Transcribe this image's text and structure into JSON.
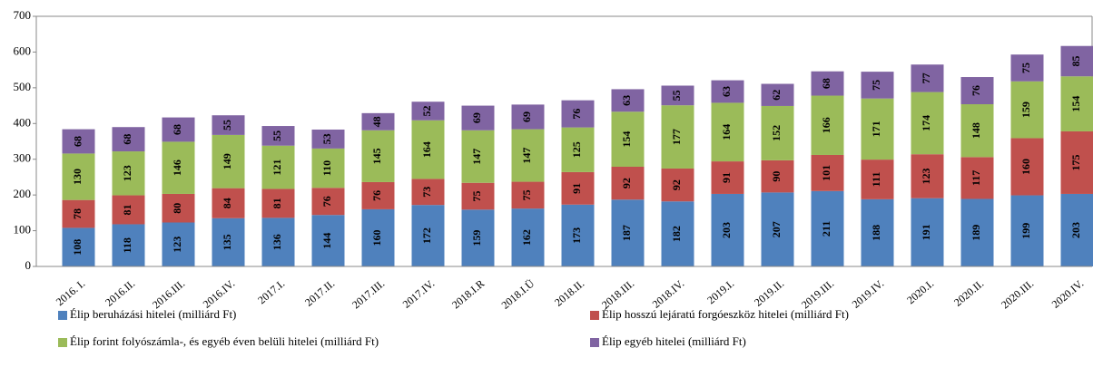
{
  "chart_data": {
    "type": "stacked_bar",
    "categories": [
      "2016. I.",
      "2016.II.",
      "2016.III.",
      "2016.IV.",
      "2017.I.",
      "2017.II.",
      "2017.III.",
      "2017.IV.",
      "2018.I.R",
      "2018.I.Ü",
      "2018.II.",
      "2018.III.",
      "2018.IV.",
      "2019.I.",
      "2019.II.",
      "2019.III.",
      "2019.IV.",
      "2020.I.",
      "2020.II.",
      "2020.III.",
      "2020.IV."
    ],
    "series": [
      {
        "name": "Élip beruházási hitelei (milliárd Ft)",
        "color": "#4f81bd",
        "values": [
          108,
          118,
          123,
          135,
          136,
          144,
          160,
          172,
          159,
          162,
          173,
          187,
          182,
          203,
          207,
          211,
          188,
          191,
          189,
          199,
          203
        ]
      },
      {
        "name": "Élip hosszú lejáratú forgóeszköz hitelei (milliárd Ft)",
        "color": "#c0504d",
        "values": [
          78,
          81,
          80,
          84,
          81,
          76,
          76,
          73,
          75,
          75,
          91,
          92,
          92,
          91,
          90,
          101,
          111,
          123,
          117,
          160,
          175
        ]
      },
      {
        "name": "Élip forint folyószámla-, és egyéb éven belüli hitelei (milliárd Ft)",
        "color": "#9bbb59",
        "values": [
          130,
          123,
          146,
          149,
          121,
          110,
          145,
          164,
          147,
          147,
          125,
          154,
          177,
          164,
          152,
          166,
          171,
          174,
          148,
          159,
          154
        ]
      },
      {
        "name": "Élip egyéb hitelei (milliárd Ft)",
        "color": "#8064a2",
        "values": [
          68,
          68,
          68,
          55,
          55,
          53,
          48,
          52,
          69,
          69,
          76,
          63,
          55,
          63,
          62,
          68,
          75,
          77,
          76,
          75,
          85
        ]
      }
    ],
    "ylim": [
      0,
      700
    ],
    "yticks": [
      0,
      100,
      200,
      300,
      400,
      500,
      600,
      700
    ],
    "legend": "bottom"
  }
}
